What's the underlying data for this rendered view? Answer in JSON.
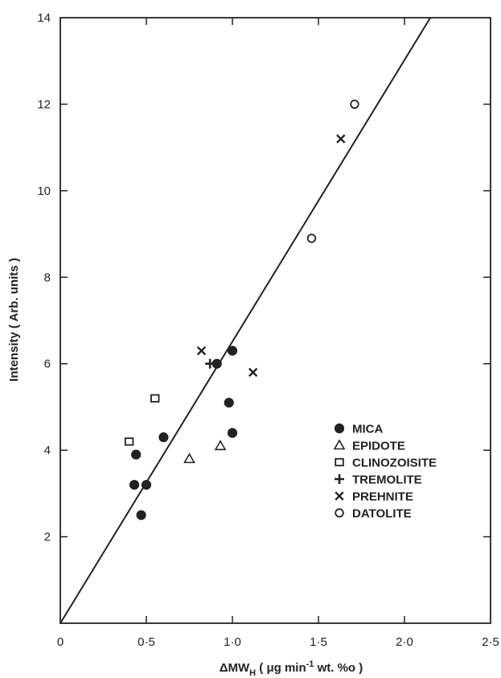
{
  "chart_data": {
    "type": "scatter",
    "xlabel_parts": [
      "ΔMW",
      "H",
      " ( μg min",
      "-1",
      " wt. %o )"
    ],
    "ylabel": "Intensity  ( Arb. units )",
    "xlim": [
      0,
      2.5
    ],
    "ylim": [
      0,
      14
    ],
    "x_ticks": [
      {
        "value": 0,
        "label": "0"
      },
      {
        "value": 0.5,
        "label": "0·5"
      },
      {
        "value": 1.0,
        "label": "1·0"
      },
      {
        "value": 1.5,
        "label": "1·5"
      },
      {
        "value": 2.0,
        "label": "2·0"
      },
      {
        "value": 2.5,
        "label": "2·5"
      }
    ],
    "y_ticks": [
      {
        "value": 2,
        "label": "2"
      },
      {
        "value": 4,
        "label": "4"
      },
      {
        "value": 6,
        "label": "6"
      },
      {
        "value": 8,
        "label": "8"
      },
      {
        "value": 10,
        "label": "10"
      },
      {
        "value": 12,
        "label": "12"
      },
      {
        "value": 14,
        "label": "14"
      }
    ],
    "grid": false,
    "legend_position": "middle-right",
    "fit_line": {
      "x": [
        0,
        2.15
      ],
      "y": [
        0,
        14
      ]
    },
    "series": [
      {
        "name": "MICA",
        "marker": "filled-circle",
        "points": [
          [
            0.44,
            3.9
          ],
          [
            0.43,
            3.2
          ],
          [
            0.5,
            3.2
          ],
          [
            0.47,
            2.5
          ],
          [
            0.6,
            4.3
          ],
          [
            0.91,
            6.0
          ],
          [
            1.0,
            6.3
          ],
          [
            0.98,
            5.1
          ],
          [
            1.0,
            4.4
          ]
        ]
      },
      {
        "name": "EPIDOTE",
        "marker": "open-triangle",
        "points": [
          [
            0.75,
            3.8
          ],
          [
            0.93,
            4.1
          ]
        ]
      },
      {
        "name": "CLINOZOISITE",
        "marker": "open-square",
        "points": [
          [
            0.4,
            4.2
          ],
          [
            0.55,
            5.2
          ]
        ]
      },
      {
        "name": "TREMOLITE",
        "marker": "plus",
        "points": [
          [
            0.87,
            6.0
          ]
        ]
      },
      {
        "name": "PREHNITE",
        "marker": "cross",
        "points": [
          [
            0.82,
            6.3
          ],
          [
            1.12,
            5.8
          ],
          [
            1.63,
            11.2
          ]
        ]
      },
      {
        "name": "DATOLITE",
        "marker": "open-circle",
        "points": [
          [
            1.46,
            8.9
          ],
          [
            1.71,
            12.0
          ]
        ]
      }
    ]
  }
}
